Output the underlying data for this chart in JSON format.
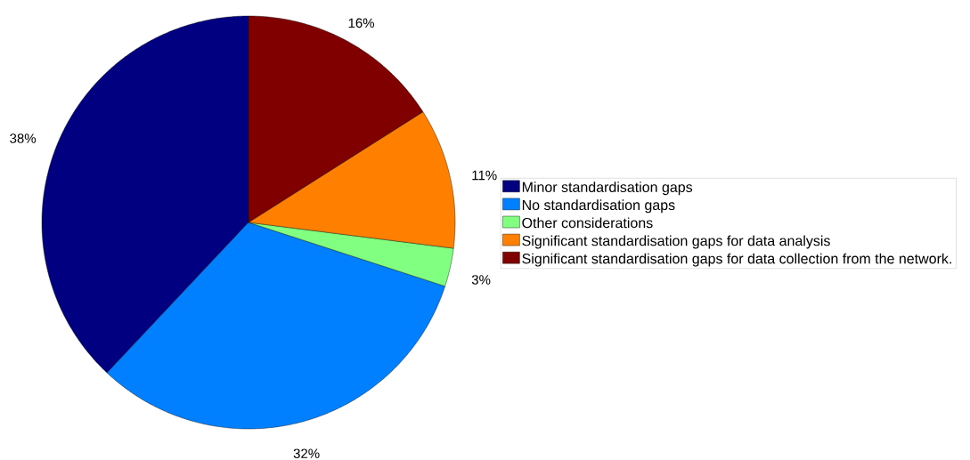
{
  "chart_data": {
    "type": "pie",
    "categories": [
      "Minor standardisation gaps",
      "No standardisation gaps",
      "Other considerations",
      "Significant standardisation gaps for data analysis",
      "Significant standardisation gaps for data collection from the network."
    ],
    "values": [
      38,
      32,
      3,
      11,
      16
    ],
    "colors": [
      "#000080",
      "#0080ff",
      "#80ff80",
      "#ff8000",
      "#800000"
    ],
    "value_labels": [
      "38%",
      "32%",
      "3%",
      "11%",
      "16%"
    ],
    "legend": "right"
  }
}
